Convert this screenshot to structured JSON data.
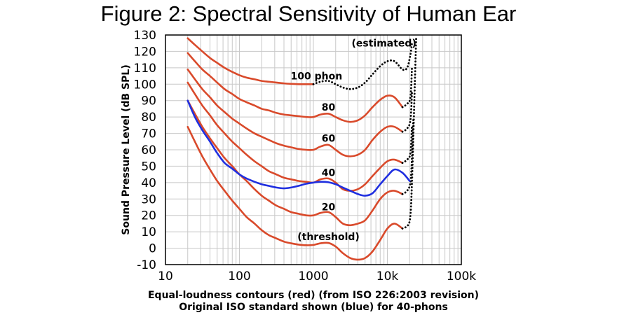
{
  "chart_data": {
    "type": "line",
    "title": "Figure 2: Spectral Sensitivity of Human Ear",
    "xlabel_lines": [
      "Equal-loudness contours (red) (from ISO 226:2003 revision)",
      "Original ISO standard shown (blue) for 40-phons"
    ],
    "ylabel": "Sound Pressure Level (dB SPL)",
    "x_scale": "log",
    "xlim": [
      10,
      100000
    ],
    "ylim": [
      -10,
      130
    ],
    "grid": true,
    "x_tick_labels": [
      {
        "value": 10,
        "label": "10"
      },
      {
        "value": 100,
        "label": "100"
      },
      {
        "value": 1000,
        "label": "1000"
      },
      {
        "value": 10000,
        "label": "10k"
      },
      {
        "value": 100000,
        "label": "100k"
      }
    ],
    "y_ticks": [
      -10,
      0,
      10,
      20,
      30,
      40,
      50,
      60,
      70,
      80,
      90,
      100,
      110,
      120,
      130
    ],
    "series": [
      {
        "color": "#d94a2b",
        "style": "solid",
        "points": [
          [
            20,
            74
          ],
          [
            25,
            65
          ],
          [
            31.5,
            56
          ],
          [
            40,
            48
          ],
          [
            50,
            41
          ],
          [
            63,
            35
          ],
          [
            80,
            29
          ],
          [
            100,
            24
          ],
          [
            125,
            19
          ],
          [
            160,
            15
          ],
          [
            200,
            11
          ],
          [
            250,
            8
          ],
          [
            315,
            6
          ],
          [
            400,
            4
          ],
          [
            500,
            3
          ],
          [
            630,
            2.2
          ],
          [
            800,
            1.8
          ],
          [
            1000,
            2
          ],
          [
            1250,
            3
          ],
          [
            1600,
            3.2
          ],
          [
            2000,
            1
          ],
          [
            2500,
            -3
          ],
          [
            3150,
            -6
          ],
          [
            4000,
            -7
          ],
          [
            5000,
            -6
          ],
          [
            6300,
            -2
          ],
          [
            8000,
            5
          ],
          [
            10000,
            12
          ],
          [
            12500,
            15
          ],
          [
            16000,
            12
          ]
        ]
      },
      {
        "color": "#000000",
        "style": "dotted",
        "points": [
          [
            16000,
            12
          ],
          [
            19000,
            14
          ],
          [
            20500,
            20
          ],
          [
            21500,
            40
          ],
          [
            22500,
            70
          ],
          [
            23500,
            100
          ],
          [
            24500,
            128
          ]
        ]
      },
      {
        "color": "#d94a2b",
        "style": "solid",
        "points": [
          [
            20,
            90
          ],
          [
            25,
            82
          ],
          [
            31.5,
            74
          ],
          [
            40,
            67
          ],
          [
            50,
            61
          ],
          [
            63,
            55
          ],
          [
            80,
            50
          ],
          [
            100,
            45
          ],
          [
            125,
            41
          ],
          [
            160,
            36
          ],
          [
            200,
            32
          ],
          [
            250,
            29
          ],
          [
            315,
            26
          ],
          [
            400,
            24
          ],
          [
            500,
            22
          ],
          [
            630,
            21
          ],
          [
            800,
            20
          ],
          [
            1000,
            20
          ],
          [
            1250,
            21.5
          ],
          [
            1600,
            22
          ],
          [
            2000,
            19
          ],
          [
            2500,
            15
          ],
          [
            3150,
            14
          ],
          [
            4000,
            15
          ],
          [
            5000,
            17
          ],
          [
            6300,
            23
          ],
          [
            8000,
            30
          ],
          [
            10000,
            34
          ],
          [
            12500,
            35
          ],
          [
            16000,
            33
          ]
        ]
      },
      {
        "color": "#000000",
        "style": "dotted",
        "points": [
          [
            16000,
            33
          ],
          [
            18500,
            35
          ],
          [
            20500,
            40
          ],
          [
            21500,
            55
          ],
          [
            22500,
            80
          ]
        ]
      },
      {
        "color": "#d94a2b",
        "style": "solid",
        "points": [
          [
            20,
            101
          ],
          [
            25,
            94
          ],
          [
            31.5,
            87
          ],
          [
            40,
            81
          ],
          [
            50,
            75
          ],
          [
            63,
            70
          ],
          [
            80,
            65
          ],
          [
            100,
            61
          ],
          [
            125,
            57
          ],
          [
            160,
            53
          ],
          [
            200,
            50
          ],
          [
            250,
            47
          ],
          [
            315,
            45
          ],
          [
            400,
            43
          ],
          [
            500,
            42
          ],
          [
            630,
            41
          ],
          [
            800,
            40.5
          ],
          [
            1000,
            40
          ],
          [
            1250,
            42
          ],
          [
            1600,
            42.5
          ],
          [
            2000,
            40
          ],
          [
            2500,
            36
          ],
          [
            3150,
            35
          ],
          [
            4000,
            36
          ],
          [
            5000,
            39
          ],
          [
            6300,
            44
          ],
          [
            8000,
            49
          ],
          [
            10000,
            53
          ],
          [
            12500,
            54
          ],
          [
            16000,
            52
          ]
        ]
      },
      {
        "color": "#000000",
        "style": "dotted",
        "points": [
          [
            16000,
            52
          ],
          [
            18500,
            54
          ],
          [
            20500,
            58
          ],
          [
            21500,
            75
          ]
        ]
      },
      {
        "color": "#d94a2b",
        "style": "solid",
        "points": [
          [
            20,
            109
          ],
          [
            25,
            103
          ],
          [
            31.5,
            97
          ],
          [
            40,
            92
          ],
          [
            50,
            87
          ],
          [
            63,
            83
          ],
          [
            80,
            79
          ],
          [
            100,
            76
          ],
          [
            125,
            73
          ],
          [
            160,
            70
          ],
          [
            200,
            68
          ],
          [
            250,
            66
          ],
          [
            315,
            64
          ],
          [
            400,
            62.5
          ],
          [
            500,
            61.5
          ],
          [
            630,
            60.5
          ],
          [
            800,
            60
          ],
          [
            1000,
            60
          ],
          [
            1250,
            62
          ],
          [
            1600,
            63
          ],
          [
            2000,
            60
          ],
          [
            2500,
            57
          ],
          [
            3150,
            56
          ],
          [
            4000,
            57
          ],
          [
            5000,
            60
          ],
          [
            6300,
            66
          ],
          [
            8000,
            71
          ],
          [
            10000,
            74
          ],
          [
            12500,
            74
          ],
          [
            16000,
            71
          ]
        ]
      },
      {
        "color": "#000000",
        "style": "dotted",
        "points": [
          [
            16000,
            71
          ],
          [
            18500,
            73
          ],
          [
            20500,
            78
          ],
          [
            21500,
            95
          ]
        ]
      },
      {
        "color": "#d94a2b",
        "style": "solid",
        "points": [
          [
            20,
            119
          ],
          [
            25,
            114
          ],
          [
            31.5,
            109
          ],
          [
            40,
            105
          ],
          [
            50,
            101
          ],
          [
            63,
            97
          ],
          [
            80,
            94
          ],
          [
            100,
            91
          ],
          [
            125,
            89
          ],
          [
            160,
            87
          ],
          [
            200,
            85
          ],
          [
            250,
            84
          ],
          [
            315,
            82.5
          ],
          [
            400,
            81.5
          ],
          [
            500,
            81
          ],
          [
            630,
            80.5
          ],
          [
            800,
            80
          ],
          [
            1000,
            80
          ],
          [
            1250,
            81.5
          ],
          [
            1600,
            82
          ],
          [
            2000,
            80
          ],
          [
            2500,
            78
          ],
          [
            3150,
            77
          ],
          [
            4000,
            78
          ],
          [
            5000,
            81
          ],
          [
            6300,
            86
          ],
          [
            8000,
            90.5
          ],
          [
            10000,
            93
          ],
          [
            12500,
            92
          ],
          [
            16000,
            86
          ]
        ]
      },
      {
        "color": "#000000",
        "style": "dotted",
        "points": [
          [
            16000,
            86
          ],
          [
            18500,
            88
          ],
          [
            20500,
            92
          ],
          [
            21500,
            110
          ]
        ]
      },
      {
        "color": "#d94a2b",
        "style": "solid",
        "points": [
          [
            20,
            128
          ],
          [
            25,
            124
          ],
          [
            31.5,
            120
          ],
          [
            40,
            116
          ],
          [
            50,
            113
          ],
          [
            63,
            110
          ],
          [
            80,
            107.5
          ],
          [
            100,
            105.5
          ],
          [
            125,
            104
          ],
          [
            160,
            103
          ],
          [
            200,
            102
          ],
          [
            250,
            101.5
          ],
          [
            315,
            101
          ],
          [
            400,
            100.5
          ],
          [
            500,
            100.2
          ],
          [
            630,
            100
          ],
          [
            800,
            100
          ],
          [
            1000,
            100
          ]
        ]
      },
      {
        "color": "#000000",
        "style": "dotted",
        "points": [
          [
            1000,
            100
          ],
          [
            1250,
            101.5
          ],
          [
            1600,
            102
          ],
          [
            2000,
            100
          ],
          [
            2500,
            98
          ],
          [
            3150,
            97
          ],
          [
            4000,
            98
          ],
          [
            5000,
            101
          ],
          [
            6300,
            106
          ],
          [
            8000,
            111
          ],
          [
            10000,
            114
          ],
          [
            12500,
            114
          ],
          [
            16000,
            109
          ],
          [
            18500,
            110
          ],
          [
            20500,
            118
          ],
          [
            21500,
            125
          ]
        ]
      },
      {
        "color": "#1f2fe0",
        "style": "solid",
        "points": [
          [
            20,
            90
          ],
          [
            25,
            80
          ],
          [
            31.5,
            72
          ],
          [
            40,
            65
          ],
          [
            50,
            58
          ],
          [
            63,
            52
          ],
          [
            80,
            48.5
          ],
          [
            100,
            45
          ],
          [
            125,
            42.5
          ],
          [
            160,
            40.5
          ],
          [
            200,
            39
          ],
          [
            250,
            38
          ],
          [
            315,
            37
          ],
          [
            400,
            36.5
          ],
          [
            500,
            37
          ],
          [
            630,
            38
          ],
          [
            800,
            39.3
          ],
          [
            1000,
            40
          ],
          [
            1250,
            40.5
          ],
          [
            1600,
            40.2
          ],
          [
            2000,
            39
          ],
          [
            2500,
            37
          ],
          [
            3150,
            35
          ],
          [
            4000,
            33
          ],
          [
            5000,
            32
          ],
          [
            6300,
            33.5
          ],
          [
            8000,
            39
          ],
          [
            10000,
            44
          ],
          [
            12500,
            48
          ],
          [
            16000,
            46
          ],
          [
            20000,
            41
          ]
        ]
      }
    ],
    "annotations": [
      {
        "text": "(estimated)",
        "x": 9000,
        "y": 123
      },
      {
        "text": "100 phon",
        "x": 1100,
        "y": 103
      },
      {
        "text": "80",
        "x": 1600,
        "y": 84
      },
      {
        "text": "60",
        "x": 1600,
        "y": 65
      },
      {
        "text": "40",
        "x": 1600,
        "y": 44
      },
      {
        "text": "20",
        "x": 1600,
        "y": 23
      },
      {
        "text": "(threshold)",
        "x": 1600,
        "y": 5
      }
    ]
  }
}
